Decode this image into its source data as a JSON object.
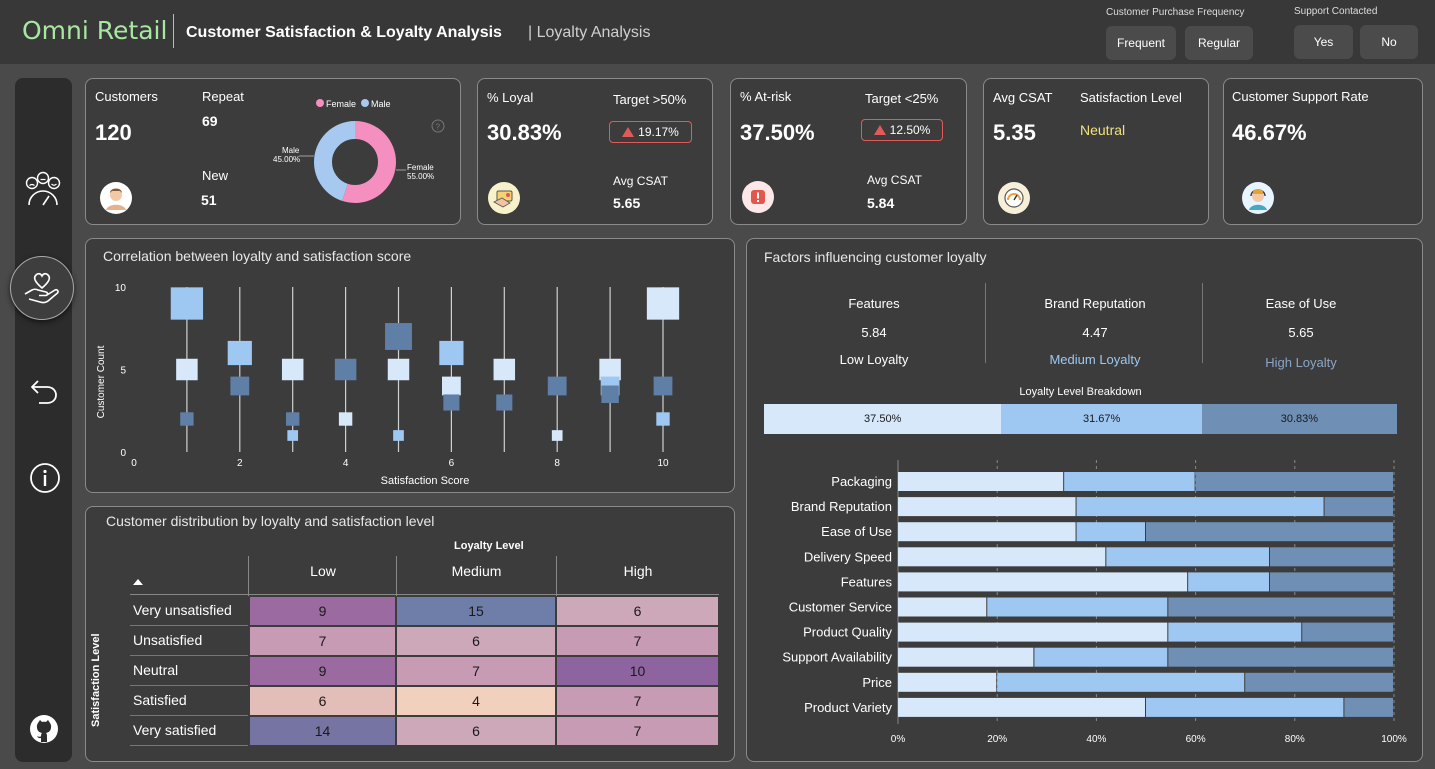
{
  "header": {
    "brand": "Omni Retail",
    "title": "Customer Satisfaction & Loyalty Analysis",
    "subtitle": "| Loyalty Analysis",
    "frequency_slicer": {
      "title": "Customer Purchase Frequency",
      "options": [
        "Frequent",
        "Regular"
      ]
    },
    "support_slicer": {
      "title": "Support Contacted",
      "options": [
        "Yes",
        "No"
      ]
    }
  },
  "sidebar": {
    "items": [
      "satisfaction-page",
      "loyalty-page",
      "back",
      "info",
      "github"
    ]
  },
  "kpi_customers": {
    "customers_label": "Customers",
    "customers_value": "120",
    "repeat_label": "Repeat",
    "repeat_value": "69",
    "new_label": "New",
    "new_value": "51",
    "donut": {
      "legend_female": "Female",
      "legend_male": "Male",
      "male_label": "Male",
      "male_pct": "45.00%",
      "female_label": "Female",
      "female_pct": "55.00%",
      "male_value": 45,
      "female_value": 55,
      "female_color": "#f58fc0",
      "male_color": "#a7c8ef"
    }
  },
  "kpi_loyal": {
    "label": "% Loyal",
    "value": "30.83%",
    "target_label": "Target >50%",
    "badge": "19.17%",
    "csat_label": "Avg CSAT",
    "csat_value": "5.65"
  },
  "kpi_atrisk": {
    "label": "% At-risk",
    "value": "37.50%",
    "target_label": "Target <25%",
    "badge": "12.50%",
    "csat_label": "Avg CSAT",
    "csat_value": "5.84"
  },
  "kpi_csat": {
    "label": "Avg CSAT",
    "value": "5.35",
    "level_label": "Satisfaction Level",
    "level_value": "Neutral",
    "level_color": "#f2e27a"
  },
  "kpi_support": {
    "label": "Customer Support Rate",
    "value": "46.67%"
  },
  "correlation": {
    "title": "Correlation between loyalty and satisfaction score",
    "chart_data": {
      "type": "scatter",
      "xlabel": "Satisfaction Score",
      "ylabel": "Customer Count",
      "xlim": [
        0,
        10
      ],
      "ylim": [
        0,
        10
      ],
      "x_ticks": [
        "0",
        "2",
        "4",
        "6",
        "8",
        "10"
      ],
      "y_ticks": [
        "0",
        "5",
        "10"
      ],
      "points": [
        {
          "x": 1,
          "y": 9,
          "loyalty": "Medium"
        },
        {
          "x": 1,
          "y": 5,
          "loyalty": "Low"
        },
        {
          "x": 1,
          "y": 2,
          "loyalty": "High"
        },
        {
          "x": 2,
          "y": 6,
          "loyalty": "Medium"
        },
        {
          "x": 2,
          "y": 4,
          "loyalty": "High"
        },
        {
          "x": 3,
          "y": 5,
          "loyalty": "Low"
        },
        {
          "x": 3,
          "y": 2,
          "loyalty": "High"
        },
        {
          "x": 3,
          "y": 1,
          "loyalty": "Medium"
        },
        {
          "x": 4,
          "y": 5,
          "loyalty": "High"
        },
        {
          "x": 4,
          "y": 2,
          "loyalty": "Low"
        },
        {
          "x": 5,
          "y": 7,
          "loyalty": "High"
        },
        {
          "x": 5,
          "y": 5,
          "loyalty": "Low"
        },
        {
          "x": 5,
          "y": 1,
          "loyalty": "Medium"
        },
        {
          "x": 6,
          "y": 6,
          "loyalty": "Medium"
        },
        {
          "x": 6,
          "y": 4,
          "loyalty": "Low"
        },
        {
          "x": 6,
          "y": 3,
          "loyalty": "High"
        },
        {
          "x": 7,
          "y": 5,
          "loyalty": "Low"
        },
        {
          "x": 7,
          "y": 3,
          "loyalty": "High"
        },
        {
          "x": 8,
          "y": 4,
          "loyalty": "High"
        },
        {
          "x": 8,
          "y": 1,
          "loyalty": "Low"
        },
        {
          "x": 9,
          "y": 5,
          "loyalty": "Low"
        },
        {
          "x": 9,
          "y": 4,
          "loyalty": "Medium"
        },
        {
          "x": 9,
          "y": 3.5,
          "loyalty": "High"
        },
        {
          "x": 10,
          "y": 9,
          "loyalty": "Low"
        },
        {
          "x": 10,
          "y": 4,
          "loyalty": "High"
        },
        {
          "x": 10,
          "y": 2,
          "loyalty": "Medium"
        }
      ],
      "colors": {
        "Low": "#d6e8fa",
        "Medium": "#9ec8f2",
        "High": "#5f7fa6"
      }
    }
  },
  "distribution": {
    "title": "Customer distribution by loyalty and satisfaction level",
    "col_header": "Loyalty Level",
    "row_header": "Satisfaction Level",
    "columns": [
      "Low",
      "Medium",
      "High"
    ],
    "rows": [
      {
        "label": "Very unsatisfied",
        "values": [
          "9",
          "15",
          "6"
        ]
      },
      {
        "label": "Unsatisfied",
        "values": [
          "7",
          "6",
          "7"
        ]
      },
      {
        "label": "Neutral",
        "values": [
          "9",
          "7",
          "10"
        ]
      },
      {
        "label": "Satisfied",
        "values": [
          "6",
          "4",
          "7"
        ]
      },
      {
        "label": "Very satisfied",
        "values": [
          "14",
          "6",
          "7"
        ]
      }
    ],
    "colors": [
      [
        "#9b6aa0",
        "#6f7ea8",
        "#cca8b8"
      ],
      [
        "#c79bb3",
        "#cca8b8",
        "#c79bb3"
      ],
      [
        "#9b6aa0",
        "#c79bb3",
        "#8e64a0"
      ],
      [
        "#e3bdb7",
        "#f1d1bd",
        "#c79bb3"
      ],
      [
        "#7674a3",
        "#cca8b8",
        "#c79bb3"
      ]
    ]
  },
  "factors": {
    "title": "Factors influencing customer loyalty",
    "top": [
      {
        "name": "Features",
        "value": "5.84",
        "level": "Low Loyalty",
        "color": "#ffffff"
      },
      {
        "name": "Brand Reputation",
        "value": "4.47",
        "level": "Medium Loyalty",
        "color": "#9ec8f2"
      },
      {
        "name": "Ease of Use",
        "value": "5.65",
        "level": "High Loyalty",
        "color": "#8aa6c8"
      }
    ],
    "breakdown_title": "Loyalty Level Breakdown",
    "breakdown": [
      {
        "label": "37.50%",
        "value": 37.5,
        "color": "#d6e8fa"
      },
      {
        "label": "31.67%",
        "value": 31.67,
        "color": "#9ec8f2"
      },
      {
        "label": "30.83%",
        "value": 30.83,
        "color": "#6f8fb5"
      }
    ],
    "chart_data": {
      "type": "bar",
      "orientation": "horizontal",
      "stacked": "100%",
      "categories": [
        "Packaging",
        "Brand Reputation",
        "Ease of Use",
        "Delivery Speed",
        "Features",
        "Customer Service",
        "Product Quality",
        "Support Availability",
        "Price",
        "Product Variety"
      ],
      "series": [
        {
          "values": [
            33.5,
            36,
            36,
            42,
            58.5,
            18,
            54.5,
            27.5,
            20,
            50
          ],
          "color": "#d6e8fa"
        },
        {
          "values": [
            26.5,
            50,
            14,
            33,
            16.5,
            36.5,
            27,
            27,
            50,
            40
          ],
          "color": "#9ec8f2"
        },
        {
          "values": [
            40,
            14,
            50,
            25,
            25,
            45.5,
            18.5,
            45.5,
            30,
            10
          ],
          "color": "#6f8fb5"
        }
      ],
      "x_ticks": [
        "0%",
        "20%",
        "40%",
        "60%",
        "80%",
        "100%"
      ],
      "xlim": [
        0,
        100
      ]
    }
  }
}
